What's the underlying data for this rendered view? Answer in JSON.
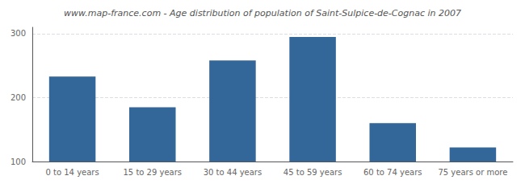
{
  "chart_data": {
    "type": "bar",
    "title": "www.map-france.com - Age distribution of population of Saint-Sulpice-de-Cognac in 2007",
    "categories": [
      "0 to 14 years",
      "15 to 29 years",
      "30 to 44 years",
      "45 to 59 years",
      "60 to 74 years",
      "75 years or more"
    ],
    "values": [
      233,
      185,
      258,
      295,
      160,
      122
    ],
    "color": "#336699",
    "ylim": [
      100,
      310
    ],
    "yticks": [
      100,
      200,
      300
    ],
    "grid": true
  }
}
